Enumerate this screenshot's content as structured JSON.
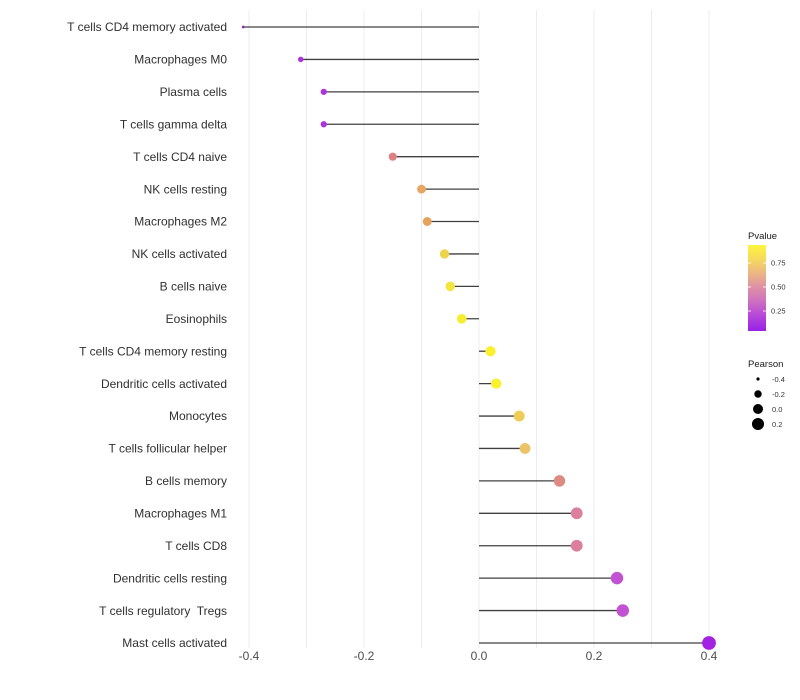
{
  "chart_data": {
    "type": "lollipop",
    "title": "",
    "xlabel": "",
    "ylabel": "",
    "x_ticks": [
      "-0.4",
      "-0.2",
      "0.0",
      "0.2",
      "0.4"
    ],
    "x_tick_values": [
      -0.4,
      -0.2,
      0.0,
      0.2,
      0.4
    ],
    "x_grid_step": 0.1,
    "xlim": [
      -0.43,
      0.45
    ],
    "grid_on": true,
    "rows": [
      {
        "label": "T cells CD4 memory activated",
        "pearson": -0.41,
        "color": "#8e2bc9"
      },
      {
        "label": "Macrophages M0",
        "pearson": -0.31,
        "color": "#ab35d8"
      },
      {
        "label": "Plasma cells",
        "pearson": -0.27,
        "color": "#ab35d8"
      },
      {
        "label": "T cells gamma delta",
        "pearson": -0.27,
        "color": "#ab35d8"
      },
      {
        "label": "T cells CD4 naive",
        "pearson": -0.15,
        "color": "#dd8184"
      },
      {
        "label": "NK cells resting",
        "pearson": -0.1,
        "color": "#e7a763"
      },
      {
        "label": "Macrophages M2",
        "pearson": -0.09,
        "color": "#e7a25e"
      },
      {
        "label": "NK cells activated",
        "pearson": -0.06,
        "color": "#eed34d"
      },
      {
        "label": "B cells naive",
        "pearson": -0.05,
        "color": "#f3e53b"
      },
      {
        "label": "Eosinophils",
        "pearson": -0.03,
        "color": "#f7ee31"
      },
      {
        "label": "T cells CD4 memory resting",
        "pearson": 0.02,
        "color": "#f9f02e"
      },
      {
        "label": "Dendritic cells activated",
        "pearson": 0.03,
        "color": "#f9f02e"
      },
      {
        "label": "Monocytes",
        "pearson": 0.07,
        "color": "#eecc55"
      },
      {
        "label": "T cells follicular helper",
        "pearson": 0.08,
        "color": "#ecc368"
      },
      {
        "label": "B cells memory",
        "pearson": 0.14,
        "color": "#dd8a82"
      },
      {
        "label": "Macrophages M1",
        "pearson": 0.17,
        "color": "#dc7f9d"
      },
      {
        "label": "T cells CD8",
        "pearson": 0.17,
        "color": "#dc7f9d"
      },
      {
        "label": "Dendritic cells resting",
        "pearson": 0.24,
        "color": "#c351d3"
      },
      {
        "label": "T cells regulatory  Tregs",
        "pearson": 0.25,
        "color": "#c351d3"
      },
      {
        "label": "Mast cells activated",
        "pearson": 0.4,
        "color": "#a224e2"
      }
    ],
    "legend": {
      "pvalue": {
        "title": "Pvalue",
        "tick_labels": [
          "0.75",
          "0.50",
          "0.25"
        ],
        "tick_values": [
          0.75,
          0.5,
          0.25
        ],
        "bar_value_range": [
          0.042,
          0.937
        ],
        "gradient_bottom_to_top": [
          {
            "offset": 0.0,
            "color": "#9722e6"
          },
          {
            "offset": 0.18,
            "color": "#b647da"
          },
          {
            "offset": 0.38,
            "color": "#d277bb"
          },
          {
            "offset": 0.52,
            "color": "#df92a3"
          },
          {
            "offset": 0.68,
            "color": "#ecb882"
          },
          {
            "offset": 0.84,
            "color": "#f6da5c"
          },
          {
            "offset": 1.0,
            "color": "#fdf53d"
          }
        ]
      },
      "pearson": {
        "title": "Pearson",
        "entries": [
          {
            "label": "-0.4",
            "value": -0.4
          },
          {
            "label": "-0.2",
            "value": -0.2
          },
          {
            "label": "0.0",
            "value": 0.0
          },
          {
            "label": "0.2",
            "value": 0.2
          }
        ],
        "dot_color": "#000000"
      }
    },
    "colors": {
      "grid": "#ececec",
      "stem": "#404040",
      "axis_text": "#4d4d4d",
      "category_text": "#303030",
      "legend_title_text": "#1a1a1a",
      "legend_label_text": "#333333",
      "background": "#ffffff"
    }
  }
}
